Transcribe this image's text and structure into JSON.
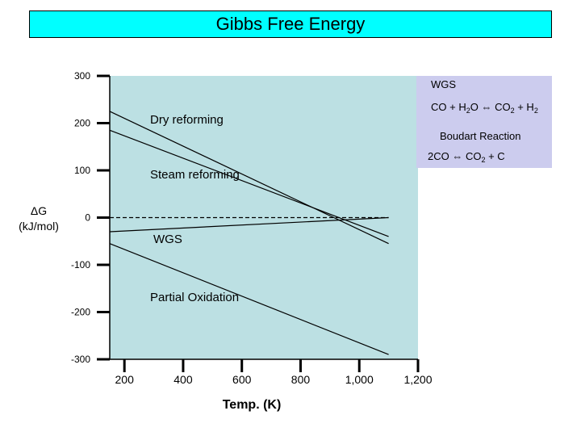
{
  "chart_data": {
    "type": "line",
    "title": "Gibbs Free Energy",
    "xlabel": "Temp. (K)",
    "ylabel_line1": "ΔG",
    "ylabel_line2": "(kJ/mol)",
    "xlim": [
      150,
      1200
    ],
    "ylim": [
      -300,
      300
    ],
    "x_ticks": [
      {
        "value": 200,
        "label": "200"
      },
      {
        "value": 400,
        "label": "400"
      },
      {
        "value": 600,
        "label": "600"
      },
      {
        "value": 800,
        "label": "800"
      },
      {
        "value": 1000,
        "label": "1,000"
      },
      {
        "value": 1200,
        "label": "1,200"
      }
    ],
    "y_ticks": [
      {
        "value": 300,
        "label": "300"
      },
      {
        "value": 200,
        "label": "200"
      },
      {
        "value": 100,
        "label": "100"
      },
      {
        "value": 0,
        "label": "0"
      },
      {
        "value": -100,
        "label": "-100"
      },
      {
        "value": -200,
        "label": "-200"
      },
      {
        "value": -300,
        "label": "-300"
      }
    ],
    "series": [
      {
        "key": "dry",
        "x": [
          150,
          1100
        ],
        "y": [
          225,
          -55
        ],
        "dash": false
      },
      {
        "key": "steam",
        "x": [
          150,
          1100
        ],
        "y": [
          185,
          -40
        ],
        "dash": false
      },
      {
        "key": "zero",
        "x": [
          150,
          1100
        ],
        "y": [
          0,
          0
        ],
        "dash": true
      },
      {
        "key": "wgs",
        "x": [
          150,
          1100
        ],
        "y": [
          -30,
          0
        ],
        "dash": false
      },
      {
        "key": "pox",
        "x": [
          150,
          1100
        ],
        "y": [
          -55,
          -290
        ],
        "dash": false
      }
    ],
    "annotations": [
      {
        "key": "dry",
        "text": "Dry reforming"
      },
      {
        "key": "steam",
        "text": "Steam reforming"
      },
      {
        "key": "wgs",
        "text": "WGS"
      },
      {
        "key": "pox",
        "text": "Partial Oxidation"
      }
    ],
    "legend": {
      "title1": "WGS",
      "eq1_parts": [
        "CO + H",
        "2",
        "O ⇔ CO",
        "2",
        " + H",
        "2"
      ],
      "title2": "Boudart Reaction",
      "eq2_parts": [
        "2CO ⇔ CO",
        "2",
        " + C"
      ]
    },
    "plot_bg": "#bce0e3",
    "title_bg": "#00ffff",
    "legend_bg": "#ccccee"
  }
}
